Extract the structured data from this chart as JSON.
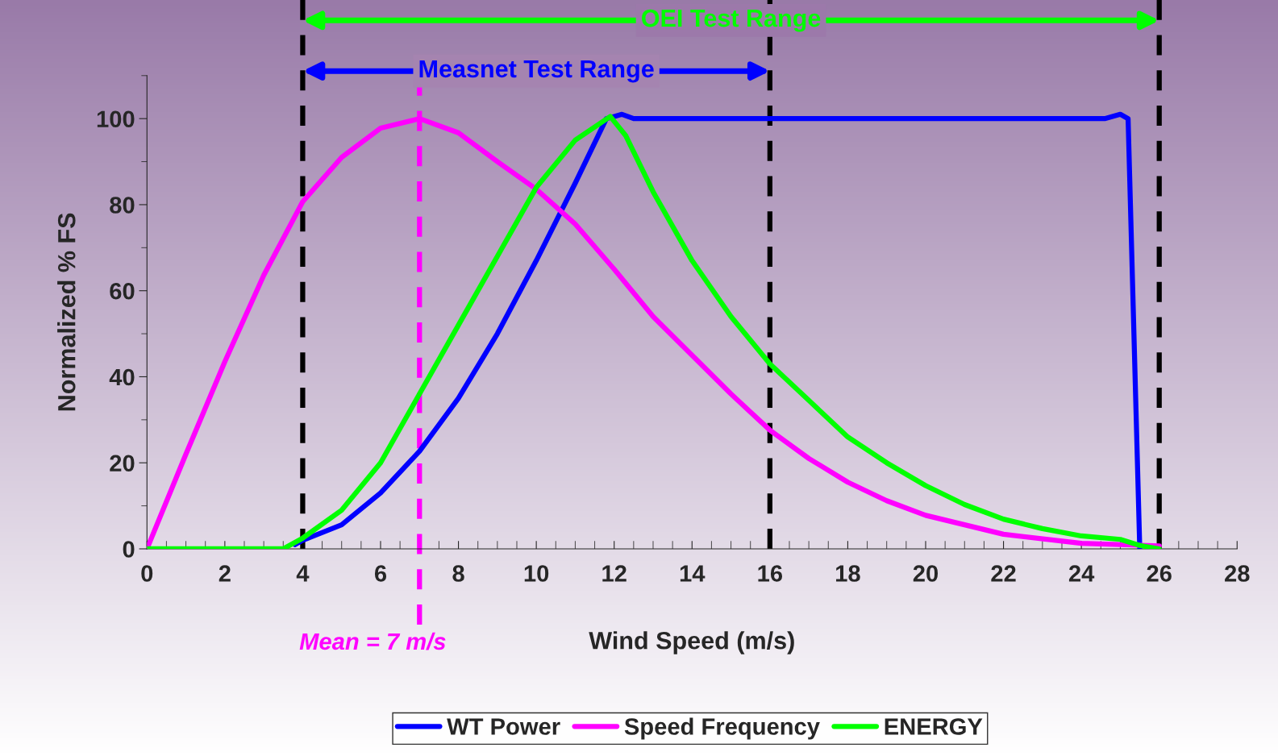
{
  "chart_data": {
    "type": "line",
    "xlabel": "Wind Speed (m/s)",
    "ylabel": "Normalized % FS",
    "xlim": [
      0,
      28
    ],
    "xticks": [
      0,
      2,
      4,
      6,
      8,
      10,
      12,
      14,
      16,
      18,
      20,
      22,
      24,
      26,
      28
    ],
    "ylim": [
      0,
      110
    ],
    "yticks": [
      0,
      20,
      40,
      60,
      80,
      100
    ],
    "grid": false,
    "legend": "bottom",
    "marker": "none",
    "line_style": "solid",
    "series": [
      {
        "name": "WT Power",
        "color": "#0000ff",
        "x": [
          3.8,
          4,
          5,
          6,
          7,
          8,
          9,
          10,
          11,
          11.8,
          12.2,
          12.5,
          14,
          16,
          18,
          20,
          22,
          24,
          24.6,
          25,
          25.2,
          25.5
        ],
        "values": [
          1,
          2,
          5.6,
          13,
          22.7,
          35,
          50,
          67,
          85,
          100,
          101,
          100,
          100,
          100,
          100,
          100,
          100,
          100,
          100,
          101,
          100,
          0
        ]
      },
      {
        "name": "Speed Frequency",
        "color": "#ff00ff",
        "x": [
          0,
          1,
          2,
          3,
          4,
          5,
          6,
          7,
          8,
          9,
          10,
          11,
          12,
          13,
          14,
          15,
          16,
          17,
          18,
          19,
          20,
          22,
          24,
          26
        ],
        "values": [
          0,
          22,
          43.5,
          63.6,
          80.7,
          91,
          97.8,
          100,
          96.7,
          90,
          83.6,
          75.5,
          65,
          54,
          45,
          36,
          27.6,
          21,
          15.5,
          11.2,
          7.8,
          3.4,
          1.3,
          0.7
        ]
      },
      {
        "name": "ENERGY",
        "color": "#00ff00",
        "x": [
          0,
          1,
          2,
          3,
          3.5,
          4,
          5,
          6,
          7,
          8,
          9,
          10,
          11,
          11.9,
          12.3,
          13,
          14,
          15,
          16,
          17,
          18,
          19,
          20,
          21,
          22,
          23,
          24,
          25,
          25.5,
          26
        ],
        "values": [
          0,
          0,
          0,
          0,
          0,
          2.5,
          9,
          20,
          36,
          52,
          68,
          84,
          95,
          100.5,
          96,
          83,
          67,
          54,
          43,
          34.5,
          26,
          20,
          14.7,
          10.3,
          6.9,
          4.7,
          3,
          2.2,
          0.8,
          0
        ]
      }
    ],
    "ref_lines": [
      {
        "axis": "x",
        "value": 4,
        "color": "#000000",
        "line_style": "dashed"
      },
      {
        "axis": "x",
        "value": 16,
        "color": "#000000",
        "line_style": "dashed"
      },
      {
        "axis": "x",
        "value": 26,
        "color": "#000000",
        "line_style": "dashed"
      },
      {
        "axis": "x",
        "value": 7,
        "label": "Mean = 7 m/s",
        "color": "#ff00ff",
        "line_style": "dashed"
      }
    ],
    "annotations": [
      "OEI Test Range",
      "Measnet Test Range"
    ]
  }
}
